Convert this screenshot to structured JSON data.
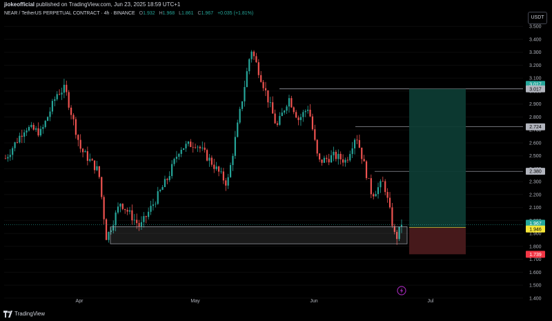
{
  "header": {
    "publisher": "jiokeofficial",
    "publish_text": "published on TradingView.com, Jun 23, 2025 18:59 UTC+1",
    "symbol": "NEAR / TetherUS PERPETUAL CONTRACT · 4h · BINANCE",
    "open_label": "O",
    "open": "1.932",
    "high_label": "H",
    "high": "1.968",
    "low_label": "L",
    "low": "1.861",
    "close_label": "C",
    "close": "1.967",
    "change": "+0.035 (+1.81%)"
  },
  "currency": "USDT",
  "footer": {
    "brand": "TradingView",
    "logo_icon": "tradingview-logo-icon",
    "alert_icon": "lightning-icon"
  },
  "colors": {
    "up": "#26a69a",
    "down": "#ef5350",
    "background": "#000000",
    "target_zone": "#0d3b33",
    "stop_zone": "#4a1a1c",
    "label_current": "#26a69a",
    "label_entry": "#f5e538",
    "label_stop": "#f23645",
    "label_level": "#b2b5be"
  },
  "chart_data": {
    "type": "candlestick",
    "interval": "4h",
    "y_range": [
      1.33,
      3.56
    ],
    "x_ticks": [
      "Apr",
      "May",
      "Jun",
      "Jul"
    ],
    "y_ticks": [
      "3.500",
      "3.400",
      "3.300",
      "3.200",
      "3.100",
      "3.000",
      "2.900",
      "2.800",
      "2.700",
      "2.600",
      "2.500",
      "2.400",
      "2.300",
      "2.200",
      "2.100",
      "2.000",
      "1.900",
      "1.800",
      "1.700",
      "1.600",
      "1.500",
      "1.400"
    ],
    "price_path": [
      [
        0.0,
        2.48
      ],
      [
        0.05,
        2.72
      ],
      [
        0.09,
        2.68
      ],
      [
        0.13,
        2.98
      ],
      [
        0.15,
        3.02
      ],
      [
        0.19,
        2.55
      ],
      [
        0.235,
        2.38
      ],
      [
        0.255,
        1.86
      ],
      [
        0.29,
        2.14
      ],
      [
        0.34,
        1.95
      ],
      [
        0.41,
        2.33
      ],
      [
        0.44,
        2.56
      ],
      [
        0.48,
        2.6
      ],
      [
        0.52,
        2.45
      ],
      [
        0.56,
        2.28
      ],
      [
        0.6,
        2.98
      ],
      [
        0.62,
        3.33
      ],
      [
        0.65,
        3.06
      ],
      [
        0.685,
        2.72
      ],
      [
        0.715,
        2.95
      ],
      [
        0.74,
        2.78
      ],
      [
        0.765,
        2.88
      ],
      [
        0.79,
        2.45
      ],
      [
        0.83,
        2.5
      ],
      [
        0.86,
        2.46
      ],
      [
        0.885,
        2.67
      ],
      [
        0.925,
        2.2
      ],
      [
        0.955,
        2.3
      ],
      [
        0.985,
        1.85
      ],
      [
        1.0,
        1.967
      ]
    ],
    "levels": [
      {
        "label": "3.017",
        "value": 3.017
      },
      {
        "label": "2.724",
        "value": 2.724
      },
      {
        "label": "2.380",
        "value": 2.38
      }
    ],
    "current_price": {
      "label": "1.967",
      "value": 1.967
    },
    "target_label": "3.017",
    "position": {
      "type": "long",
      "entry": 1.946,
      "entry_label": "1.946",
      "target": 3.017,
      "stop": 1.739,
      "stop_label": "1.739"
    },
    "support_zone": {
      "low": 1.82,
      "high": 1.952
    }
  }
}
